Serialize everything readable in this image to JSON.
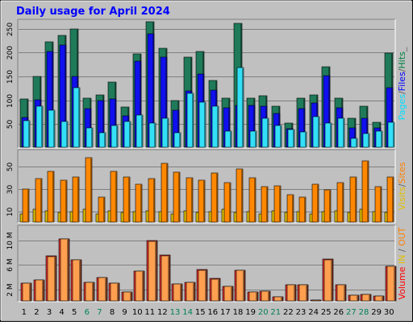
{
  "chart_data": {
    "type": "bar",
    "title": "Daily usage for April 2024",
    "categories": [
      "1",
      "2",
      "3",
      "4",
      "5",
      "6",
      "7",
      "8",
      "9",
      "10",
      "11",
      "12",
      "13",
      "14",
      "15",
      "16",
      "17",
      "18",
      "19",
      "20",
      "21",
      "22",
      "23",
      "24",
      "25",
      "26",
      "27",
      "28",
      "29",
      "30"
    ],
    "weekend_days": [
      "6",
      "7",
      "13",
      "14",
      "20",
      "21",
      "27",
      "28"
    ],
    "panels": [
      {
        "name": "hits-files-pages",
        "ylabel_parts": [
          {
            "text": "Pages",
            "color": "#00E0FF"
          },
          {
            "text": "/",
            "color": "#606060"
          },
          {
            "text": "Files",
            "color": "#0000FF"
          },
          {
            "text": "/",
            "color": "#606060"
          },
          {
            "text": "Hits",
            "color": "#008040"
          }
        ],
        "ylabel_suffix": "_",
        "yticks": [
          50,
          100,
          150,
          200,
          250
        ],
        "tick_labels": [
          "50",
          "100",
          "150",
          "200",
          "250"
        ],
        "ylim": [
          0,
          270
        ],
        "series": [
          {
            "name": "Hits",
            "color": "#1F7A5A",
            "values": [
              103,
              150,
              222,
              236,
              250,
              105,
              112,
              138,
              86,
              197,
              265,
              210,
              99,
              191,
              202,
              141,
              105,
              262,
              105,
              110,
              87,
              53,
              104,
              111,
              170,
              104,
              62,
              88,
              54,
              199
            ]
          },
          {
            "name": "Files",
            "color": "#1010EE",
            "values": [
              64,
              102,
              202,
              216,
              150,
              82,
              100,
              103,
              68,
              182,
              240,
              190,
              80,
              120,
              155,
              122,
              84,
              90,
              90,
              88,
              73,
              40,
              82,
              94,
              152,
              84,
              42,
              62,
              42,
              126
            ]
          },
          {
            "name": "Pages",
            "color": "#33E0F8",
            "values": [
              58,
              88,
              80,
              56,
              126,
              42,
              32,
              48,
              55,
              70,
              52,
              62,
              32,
              114,
              96,
              88,
              36,
              168,
              36,
              63,
              48,
              38,
              34,
              65,
              52,
              62,
              20,
              30,
              35,
              54
            ]
          }
        ]
      },
      {
        "name": "visits-sites",
        "ylabel_parts": [
          {
            "text": "Visits",
            "color": "#E0C000"
          },
          {
            "text": "/",
            "color": "#606060"
          },
          {
            "text": "Sites",
            "color": "#FF8000"
          }
        ],
        "ylabel_suffix": "",
        "yticks": [
          10,
          30,
          50
        ],
        "tick_labels": [
          "10",
          "30",
          "50"
        ],
        "ylim": [
          0,
          65
        ],
        "series": [
          {
            "name": "Visits",
            "color": "#E0C000",
            "values": [
              8,
              12,
              11,
              9,
              10,
              12,
              8,
              11,
              9,
              10,
              11,
              10,
              8,
              11,
              9,
              10,
              12,
              9,
              10,
              8,
              11,
              9,
              10,
              8,
              10,
              11,
              9,
              12,
              10,
              9
            ]
          },
          {
            "name": "Sites",
            "color": "#FF8800",
            "values": [
              30,
              39,
              46,
              38,
              41,
              58,
              23,
              46,
              41,
              34,
              39,
              53,
              45,
              40,
              38,
              44,
              36,
              48,
              40,
              32,
              33,
              25,
              23,
              34,
              29,
              36,
              41,
              55,
              32,
              41
            ]
          }
        ]
      },
      {
        "name": "volume",
        "ylabel_parts": [
          {
            "text": "Volume",
            "color": "#FF0000"
          },
          {
            "text": "  ",
            "color": "#606060"
          },
          {
            "text": "IN",
            "color": "#E0C000"
          },
          {
            "text": " / ",
            "color": "#606060"
          },
          {
            "text": "OUT",
            "color": "#FF8000"
          }
        ],
        "ylabel_suffix": "",
        "yticks": [
          2,
          6,
          10
        ],
        "tick_labels": [
          "2 M",
          "6 M",
          "10 M"
        ],
        "ylim": [
          0,
          12.5
        ],
        "series": [
          {
            "name": "Volume",
            "color": "#E83030",
            "values": [
              3.0,
              3.5,
              7.5,
              10.3,
              6.8,
              3.1,
              4.0,
              3.0,
              1.6,
              5.0,
              10.0,
              7.6,
              2.9,
              3.2,
              5.2,
              3.8,
              2.5,
              5.1,
              1.6,
              1.7,
              0.8,
              2.7,
              2.7,
              0.3,
              7.0,
              2.8,
              1.1,
              1.2,
              0.9,
              5.8
            ]
          },
          {
            "name": "Volume (out)",
            "color": "#FFA050",
            "values": [
              3.0,
              3.5,
              7.4,
              10.3,
              6.8,
              3.1,
              3.9,
              3.0,
              1.6,
              5.0,
              9.9,
              7.5,
              2.9,
              3.2,
              5.1,
              3.7,
              2.5,
              5.1,
              1.6,
              1.7,
              0.8,
              2.7,
              2.7,
              0.3,
              6.9,
              2.8,
              1.1,
              1.2,
              0.9,
              5.8
            ]
          }
        ]
      }
    ]
  }
}
